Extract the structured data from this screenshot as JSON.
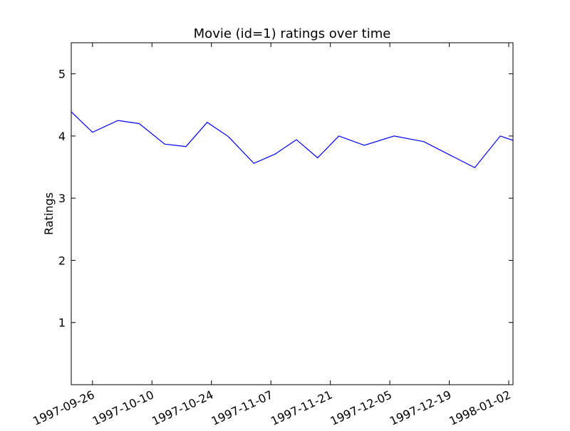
{
  "chart_data": {
    "type": "line",
    "title": "Movie (id=1) ratings over time",
    "xlabel": "",
    "ylabel": "Ratings",
    "x_tick_labels": [
      "1997-09-26",
      "1997-10-10",
      "1997-10-24",
      "1997-11-07",
      "1997-11-21",
      "1997-12-05",
      "1997-12-19",
      "1998-01-02"
    ],
    "y_tick_labels": [
      "1",
      "2",
      "3",
      "4",
      "5"
    ],
    "ylim": [
      0,
      5.5
    ],
    "xlim": [
      "1997-09-21",
      "1998-01-03"
    ],
    "grid": false,
    "line_color": "#0000ff",
    "series": [
      {
        "x": [
          "1997-09-21",
          "1997-09-26",
          "1997-10-02",
          "1997-10-07",
          "1997-10-13",
          "1997-10-18",
          "1997-10-23",
          "1997-10-28",
          "1997-11-03",
          "1997-11-08",
          "1997-11-13",
          "1997-11-18",
          "1997-11-23",
          "1997-11-29",
          "1997-12-06",
          "1997-12-13",
          "1997-12-25",
          "1997-12-31",
          "1998-01-03"
        ],
        "y": [
          4.39,
          4.06,
          4.25,
          4.2,
          3.87,
          3.83,
          4.22,
          3.99,
          3.56,
          3.71,
          3.94,
          3.65,
          4.0,
          3.85,
          4.0,
          3.91,
          3.49,
          4.0,
          3.93
        ]
      }
    ]
  }
}
